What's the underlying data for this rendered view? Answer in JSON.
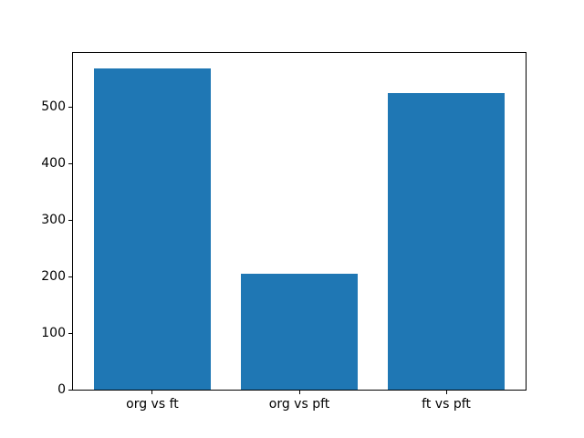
{
  "chart_data": {
    "type": "bar",
    "categories": [
      "org vs ft",
      "org vs pft",
      "ft vs pft"
    ],
    "values": [
      568,
      206,
      525
    ],
    "title": "",
    "xlabel": "",
    "ylabel": "",
    "ylim": [
      0,
      596.4
    ],
    "yticks": [
      0,
      100,
      200,
      300,
      400,
      500
    ],
    "bar_width": 0.8,
    "bar_color": "#1f77b4",
    "background_color": "#ffffff",
    "spine_color": "#000000",
    "grid": false,
    "legend": null
  }
}
